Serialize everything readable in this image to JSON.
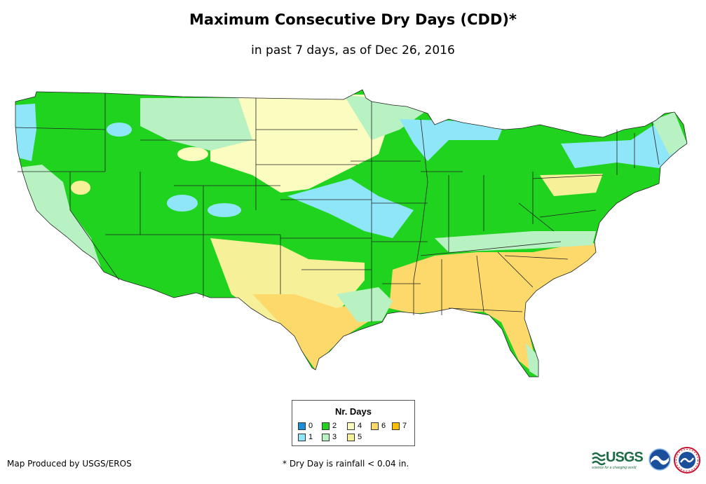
{
  "title": "Maximum Consecutive Dry Days (CDD)*",
  "subtitle": "in past 7 days, as of Dec 26, 2016",
  "legend": {
    "title": "Nr. Days",
    "items": [
      {
        "label": "0",
        "color": "#1a8fd6"
      },
      {
        "label": "1",
        "color": "#8fe6f8"
      },
      {
        "label": "2",
        "color": "#1fd31f"
      },
      {
        "label": "3",
        "color": "#b8f2c2"
      },
      {
        "label": "4",
        "color": "#fbfcc0"
      },
      {
        "label": "5",
        "color": "#f6f098"
      },
      {
        "label": "6",
        "color": "#fcd96a"
      },
      {
        "label": "7",
        "color": "#f8c000"
      }
    ]
  },
  "footer": {
    "producer": "Map Produced by USGS/EROS",
    "note": "* Dry Day is rainfall < 0.04 in."
  },
  "logos": {
    "usgs": "USGS",
    "usgs_tagline": "science for a changing world"
  },
  "colors": {
    "border": "#222222",
    "background": "#ffffff"
  }
}
